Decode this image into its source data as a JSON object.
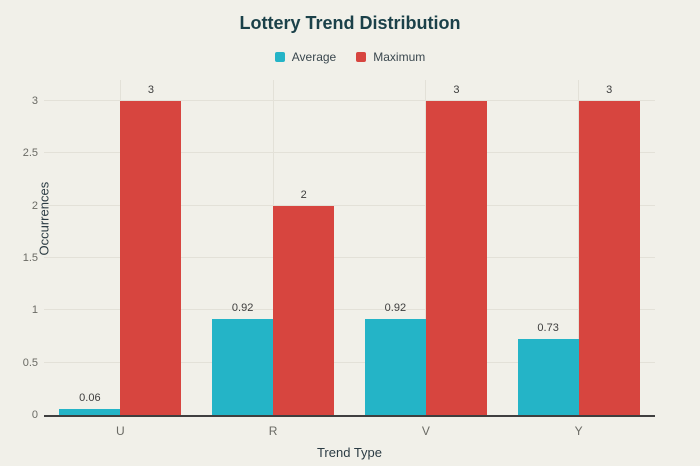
{
  "chart_data": {
    "type": "bar",
    "title": "Lottery Trend Distribution",
    "categories": [
      "U",
      "R",
      "V",
      "Y"
    ],
    "series": [
      {
        "name": "Average",
        "color": "#24B4C7",
        "values": [
          0.06,
          0.92,
          0.92,
          0.73
        ],
        "value_labels": [
          "0.06",
          "0.92",
          "0.92",
          "0.73"
        ]
      },
      {
        "name": "Maximum",
        "color": "#D7453F",
        "values": [
          3,
          2,
          3,
          3
        ],
        "value_labels": [
          "3",
          "2",
          "3",
          "3"
        ]
      }
    ],
    "xlabel": "Trend Type",
    "ylabel": "Occurrences",
    "ylim": [
      0,
      3
    ],
    "ytick_step": 0.5,
    "yticks": [
      "0",
      "0.5",
      "1",
      "1.5",
      "2",
      "2.5",
      "3"
    ],
    "grid": true,
    "legend_position": "top"
  },
  "colors": {
    "background": "#F1F0E9",
    "gridline": "#E3E1D8",
    "axis_line": "#3F3F3F",
    "title_text": "#1B4149",
    "axis_title_text": "#2C3C44",
    "tick_text": "#6A6A64",
    "value_label_text": "#3D3D3D",
    "average": "#24B4C7",
    "maximum": "#D7453F"
  }
}
